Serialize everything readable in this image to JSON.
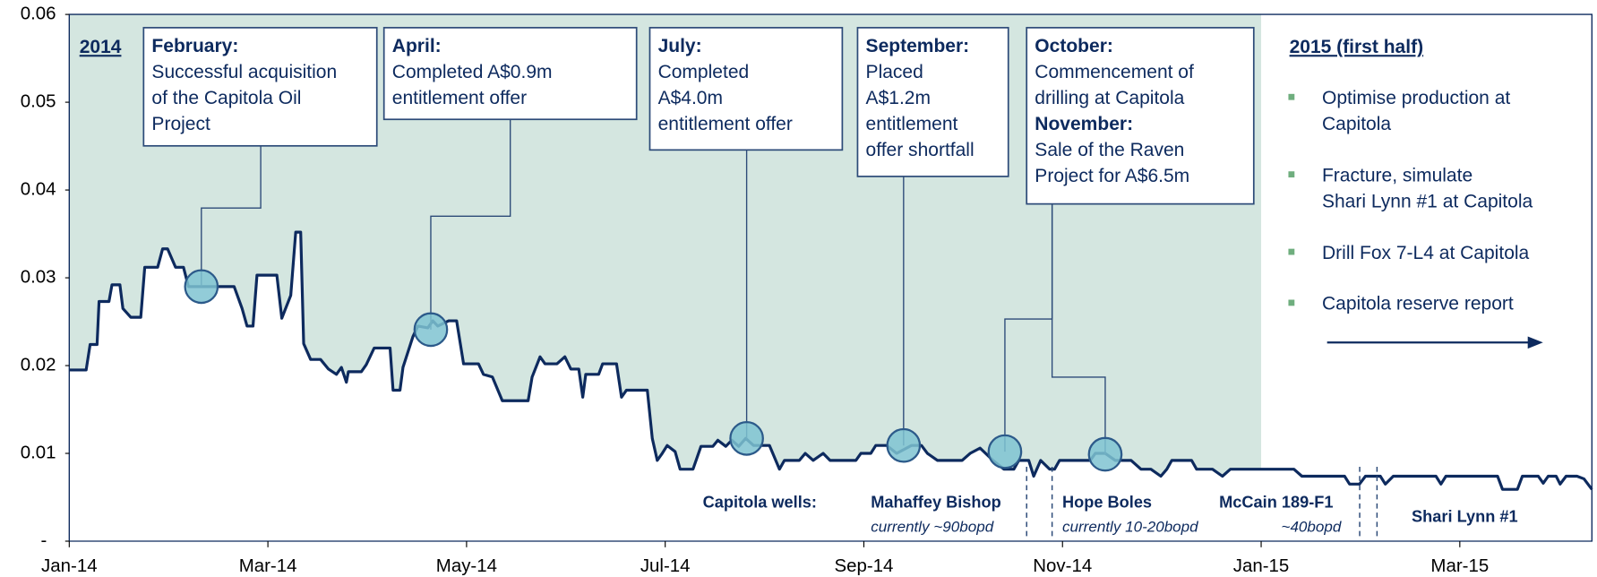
{
  "chart_data": {
    "type": "line",
    "x": [
      0,
      0.17,
      0.21,
      0.28,
      0.3,
      0.4,
      0.43,
      0.51,
      0.54,
      0.62,
      0.72,
      0.76,
      0.89,
      0.94,
      0.99,
      1.07,
      1.15,
      1.2,
      1.66,
      1.74,
      1.79,
      1.85,
      1.89,
      2.09,
      2.14,
      2.23,
      2.28,
      2.33,
      2.36,
      2.43,
      2.53,
      2.61,
      2.69,
      2.74,
      2.79,
      2.81,
      2.94,
      2.99,
      3.07,
      3.23,
      3.26,
      3.33,
      3.36,
      3.46,
      3.51,
      3.61,
      3.66,
      3.71,
      3.82,
      3.9,
      3.97,
      4.12,
      4.17,
      4.26,
      4.36,
      4.62,
      4.66,
      4.74,
      4.79,
      4.91,
      4.99,
      5.05,
      5.13,
      5.17,
      5.2,
      5.33,
      5.37,
      5.51,
      5.56,
      5.61,
      5.82,
      5.87,
      5.92,
      5.97,
      6.02,
      6.1,
      6.15,
      6.28,
      6.36,
      6.48,
      6.53,
      6.61,
      6.67,
      6.74,
      6.81,
      6.89,
      7.05,
      7.15,
      7.2,
      7.35,
      7.41,
      7.49,
      7.59,
      7.66,
      7.92,
      7.97,
      8.07,
      8.12,
      8.23,
      8.33,
      8.48,
      8.58,
      8.64,
      8.74,
      8.99,
      9.07,
      9.17,
      9.3,
      9.41,
      9.51,
      9.56,
      9.66,
      9.71,
      9.78,
      9.87,
      9.92,
      9.97,
      10.28,
      10.33,
      10.43,
      10.53,
      10.69,
      10.79,
      10.89,
      10.99,
      11.05,
      11.1,
      11.3,
      11.35,
      11.51,
      11.61,
      11.69,
      12.33,
      12.41,
      12.84,
      12.89,
      12.99,
      13.05,
      13.2,
      13.25,
      13.33,
      13.76,
      13.81,
      13.86,
      14.38,
      14.43,
      14.58,
      14.63,
      14.79,
      14.84,
      14.89,
      14.97,
      15.01,
      15.07,
      15.18,
      15.25,
      15.33
    ],
    "values": [
      0.0195,
      0.0195,
      0.0224,
      0.0224,
      0.0273,
      0.0273,
      0.0292,
      0.0292,
      0.0265,
      0.0255,
      0.0255,
      0.0312,
      0.0312,
      0.0333,
      0.0333,
      0.0312,
      0.0312,
      0.029,
      0.029,
      0.0265,
      0.0245,
      0.0245,
      0.0303,
      0.0303,
      0.0254,
      0.028,
      0.0352,
      0.0352,
      0.0225,
      0.0207,
      0.0207,
      0.0196,
      0.019,
      0.0198,
      0.0181,
      0.0193,
      0.0193,
      0.0201,
      0.022,
      0.022,
      0.0172,
      0.0172,
      0.0198,
      0.0233,
      0.0245,
      0.0243,
      0.0251,
      0.0245,
      0.0251,
      0.0251,
      0.0202,
      0.0202,
      0.019,
      0.0187,
      0.016,
      0.016,
      0.0187,
      0.021,
      0.0202,
      0.0202,
      0.021,
      0.0196,
      0.0196,
      0.0164,
      0.019,
      0.019,
      0.0202,
      0.0202,
      0.0164,
      0.0172,
      0.0172,
      0.0117,
      0.0092,
      0.01,
      0.0109,
      0.0102,
      0.0082,
      0.0082,
      0.0108,
      0.0108,
      0.0115,
      0.0108,
      0.0115,
      0.0108,
      0.0117,
      0.0109,
      0.0109,
      0.0082,
      0.0092,
      0.0092,
      0.01,
      0.0092,
      0.01,
      0.0092,
      0.0092,
      0.01,
      0.01,
      0.0109,
      0.0109,
      0.01,
      0.0109,
      0.0109,
      0.01,
      0.0092,
      0.0092,
      0.01,
      0.0106,
      0.0092,
      0.0082,
      0.0082,
      0.0092,
      0.0092,
      0.0074,
      0.0092,
      0.0082,
      0.0082,
      0.0092,
      0.0092,
      0.01,
      0.01,
      0.0092,
      0.0092,
      0.0082,
      0.0082,
      0.0074,
      0.0082,
      0.0092,
      0.0092,
      0.0082,
      0.0082,
      0.0074,
      0.0082,
      0.0082,
      0.0074,
      0.0074,
      0.0065,
      0.0065,
      0.0074,
      0.0074,
      0.0065,
      0.0074,
      0.0074,
      0.0065,
      0.0074,
      0.0074,
      0.0059,
      0.0059,
      0.0074,
      0.0074,
      0.0066,
      0.0074,
      0.0074,
      0.0065,
      0.0074,
      0.0074,
      0.0071,
      0.0059
    ],
    "color": "#0d2a5e",
    "shade_color": "#d4e6e0",
    "xlim": [
      0,
      15.33
    ],
    "xticks": [
      {
        "value": 0,
        "label": "Jan-14"
      },
      {
        "value": 2,
        "label": "Mar-14"
      },
      {
        "value": 4,
        "label": "May-14"
      },
      {
        "value": 6,
        "label": "Jul-14"
      },
      {
        "value": 8,
        "label": "Sep-14"
      },
      {
        "value": 10,
        "label": "Nov-14"
      },
      {
        "value": 12,
        "label": "Jan-15"
      },
      {
        "value": 14,
        "label": "Mar-15"
      }
    ],
    "ylim": [
      0,
      0.06
    ],
    "yticks": [
      {
        "value": 0,
        "label": "-"
      },
      0.01,
      0.02,
      0.03,
      0.04,
      0.05,
      0.06
    ],
    "period_label": "2014",
    "annotations": [
      {
        "parts": [
          {
            "heading": "February:",
            "lines": [
              "Successful acquisition",
              "of the Capitola Oil",
              "Project"
            ],
            "x": 1.33,
            "y": 0.029
          }
        ]
      },
      {
        "parts": [
          {
            "heading": "April:",
            "lines": [
              "Completed A$0.9m",
              "entitlement offer"
            ],
            "x": 3.64,
            "y": 0.0241
          }
        ]
      },
      {
        "parts": [
          {
            "heading": "July:",
            "lines": [
              "Completed",
              "A$4.0m",
              "entitlement offer"
            ],
            "x": 6.82,
            "y": 0.0117
          }
        ]
      },
      {
        "parts": [
          {
            "heading": "September:",
            "lines": [
              "Placed",
              "A$1.2m",
              "entitlement",
              "offer shortfall"
            ],
            "x": 8.4,
            "y": 0.0109
          }
        ]
      },
      {
        "parts": [
          {
            "heading": "October:",
            "lines": [
              "Commencement of",
              "drilling at Capitola"
            ],
            "x": 9.42,
            "y": 0.0102
          },
          {
            "heading": "November:",
            "lines": [
              "Sale of the Raven",
              "Project for A$6.5m"
            ],
            "x": 10.43,
            "y": 0.0099
          }
        ]
      }
    ],
    "outlook": {
      "title": "2015 (first half)",
      "bullets": [
        {
          "lines": [
            "Optimise production at",
            "Capitola"
          ]
        },
        {
          "lines": [
            "Fracture, simulate",
            "Shari Lynn #1 at Capitola"
          ]
        },
        {
          "lines": [
            "Drill Fox 7-L4 at Capitola"
          ]
        },
        {
          "lines": [
            "Capitola reserve report"
          ]
        }
      ]
    },
    "wells_label": "Capitola wells:",
    "wells": [
      {
        "name": "Mahaffey Bishop",
        "note": "currently  ~90bopd"
      },
      {
        "name": "Hope Boles",
        "note": "currently  10-20bopd"
      },
      {
        "name": "McCain 189-F1",
        "note": "~40bopd"
      },
      {
        "name": "Shari Lynn #1"
      }
    ]
  }
}
